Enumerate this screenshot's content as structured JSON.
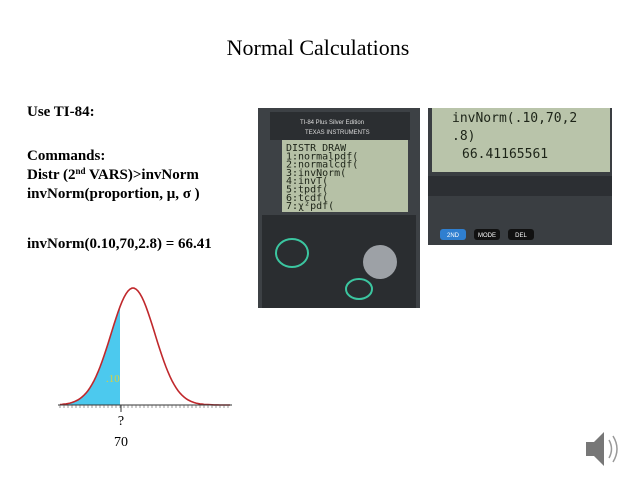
{
  "header": {
    "title": "Normal Calculations"
  },
  "body": {
    "use": "Use TI-84:",
    "commands": "Commands:",
    "distr": {
      "pre": "Distr (2",
      "sup": "nd",
      "post": " VARS)>invNorm"
    },
    "syntax": "invNorm(proportion, μ, σ )",
    "example": "invNorm(0.10,70,2.8) = 66.41"
  },
  "graph": {
    "area_label": ".10",
    "unknown": "?",
    "mean": "70"
  },
  "calculator1": {
    "brand": "TI-84 Plus Silver Edition",
    "maker": "TEXAS INSTRUMENTS",
    "screen": [
      "DISTR DRAW",
      "1:normalpdf(",
      "2:normalcdf(",
      "3:invNorm(",
      "4:invT(",
      "5:tpdf(",
      "6:tcdf(",
      "7:χ²pdf("
    ]
  },
  "calculator2": {
    "screen": [
      "invNorm(.10,70,2",
      ".8)",
      "66.41165561"
    ],
    "buttons": [
      "2ND",
      "MODE",
      "DEL"
    ]
  }
}
